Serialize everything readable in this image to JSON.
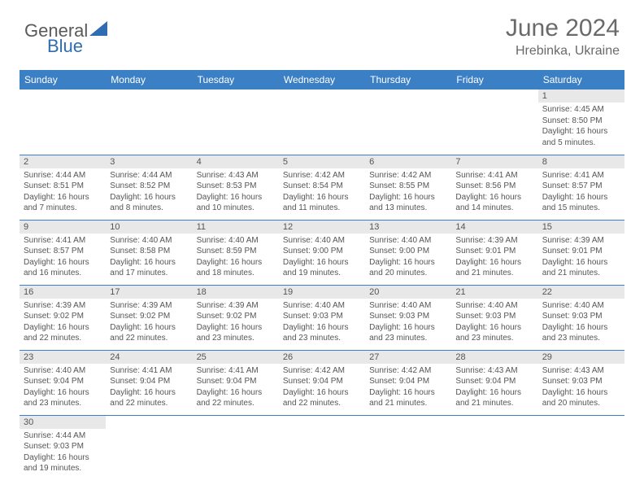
{
  "brand": {
    "text1": "General",
    "text2": "Blue",
    "color1": "#5a5a5a",
    "color2": "#2f6db3"
  },
  "title": "June 2024",
  "location": "Hrebinka, Ukraine",
  "header_bg": "#3b7fc4",
  "row_divider": "#3b7fc4",
  "daynum_bg": "#e8e8e8",
  "weekdays": [
    "Sunday",
    "Monday",
    "Tuesday",
    "Wednesday",
    "Thursday",
    "Friday",
    "Saturday"
  ],
  "weeks": [
    [
      {
        "empty": true
      },
      {
        "empty": true
      },
      {
        "empty": true
      },
      {
        "empty": true
      },
      {
        "empty": true
      },
      {
        "empty": true
      },
      {
        "n": "1",
        "sunrise": "Sunrise: 4:45 AM",
        "sunset": "Sunset: 8:50 PM",
        "day": "Daylight: 16 hours and 5 minutes."
      }
    ],
    [
      {
        "n": "2",
        "sunrise": "Sunrise: 4:44 AM",
        "sunset": "Sunset: 8:51 PM",
        "day": "Daylight: 16 hours and 7 minutes."
      },
      {
        "n": "3",
        "sunrise": "Sunrise: 4:44 AM",
        "sunset": "Sunset: 8:52 PM",
        "day": "Daylight: 16 hours and 8 minutes."
      },
      {
        "n": "4",
        "sunrise": "Sunrise: 4:43 AM",
        "sunset": "Sunset: 8:53 PM",
        "day": "Daylight: 16 hours and 10 minutes."
      },
      {
        "n": "5",
        "sunrise": "Sunrise: 4:42 AM",
        "sunset": "Sunset: 8:54 PM",
        "day": "Daylight: 16 hours and 11 minutes."
      },
      {
        "n": "6",
        "sunrise": "Sunrise: 4:42 AM",
        "sunset": "Sunset: 8:55 PM",
        "day": "Daylight: 16 hours and 13 minutes."
      },
      {
        "n": "7",
        "sunrise": "Sunrise: 4:41 AM",
        "sunset": "Sunset: 8:56 PM",
        "day": "Daylight: 16 hours and 14 minutes."
      },
      {
        "n": "8",
        "sunrise": "Sunrise: 4:41 AM",
        "sunset": "Sunset: 8:57 PM",
        "day": "Daylight: 16 hours and 15 minutes."
      }
    ],
    [
      {
        "n": "9",
        "sunrise": "Sunrise: 4:41 AM",
        "sunset": "Sunset: 8:57 PM",
        "day": "Daylight: 16 hours and 16 minutes."
      },
      {
        "n": "10",
        "sunrise": "Sunrise: 4:40 AM",
        "sunset": "Sunset: 8:58 PM",
        "day": "Daylight: 16 hours and 17 minutes."
      },
      {
        "n": "11",
        "sunrise": "Sunrise: 4:40 AM",
        "sunset": "Sunset: 8:59 PM",
        "day": "Daylight: 16 hours and 18 minutes."
      },
      {
        "n": "12",
        "sunrise": "Sunrise: 4:40 AM",
        "sunset": "Sunset: 9:00 PM",
        "day": "Daylight: 16 hours and 19 minutes."
      },
      {
        "n": "13",
        "sunrise": "Sunrise: 4:40 AM",
        "sunset": "Sunset: 9:00 PM",
        "day": "Daylight: 16 hours and 20 minutes."
      },
      {
        "n": "14",
        "sunrise": "Sunrise: 4:39 AM",
        "sunset": "Sunset: 9:01 PM",
        "day": "Daylight: 16 hours and 21 minutes."
      },
      {
        "n": "15",
        "sunrise": "Sunrise: 4:39 AM",
        "sunset": "Sunset: 9:01 PM",
        "day": "Daylight: 16 hours and 21 minutes."
      }
    ],
    [
      {
        "n": "16",
        "sunrise": "Sunrise: 4:39 AM",
        "sunset": "Sunset: 9:02 PM",
        "day": "Daylight: 16 hours and 22 minutes."
      },
      {
        "n": "17",
        "sunrise": "Sunrise: 4:39 AM",
        "sunset": "Sunset: 9:02 PM",
        "day": "Daylight: 16 hours and 22 minutes."
      },
      {
        "n": "18",
        "sunrise": "Sunrise: 4:39 AM",
        "sunset": "Sunset: 9:02 PM",
        "day": "Daylight: 16 hours and 23 minutes."
      },
      {
        "n": "19",
        "sunrise": "Sunrise: 4:40 AM",
        "sunset": "Sunset: 9:03 PM",
        "day": "Daylight: 16 hours and 23 minutes."
      },
      {
        "n": "20",
        "sunrise": "Sunrise: 4:40 AM",
        "sunset": "Sunset: 9:03 PM",
        "day": "Daylight: 16 hours and 23 minutes."
      },
      {
        "n": "21",
        "sunrise": "Sunrise: 4:40 AM",
        "sunset": "Sunset: 9:03 PM",
        "day": "Daylight: 16 hours and 23 minutes."
      },
      {
        "n": "22",
        "sunrise": "Sunrise: 4:40 AM",
        "sunset": "Sunset: 9:03 PM",
        "day": "Daylight: 16 hours and 23 minutes."
      }
    ],
    [
      {
        "n": "23",
        "sunrise": "Sunrise: 4:40 AM",
        "sunset": "Sunset: 9:04 PM",
        "day": "Daylight: 16 hours and 23 minutes."
      },
      {
        "n": "24",
        "sunrise": "Sunrise: 4:41 AM",
        "sunset": "Sunset: 9:04 PM",
        "day": "Daylight: 16 hours and 22 minutes."
      },
      {
        "n": "25",
        "sunrise": "Sunrise: 4:41 AM",
        "sunset": "Sunset: 9:04 PM",
        "day": "Daylight: 16 hours and 22 minutes."
      },
      {
        "n": "26",
        "sunrise": "Sunrise: 4:42 AM",
        "sunset": "Sunset: 9:04 PM",
        "day": "Daylight: 16 hours and 22 minutes."
      },
      {
        "n": "27",
        "sunrise": "Sunrise: 4:42 AM",
        "sunset": "Sunset: 9:04 PM",
        "day": "Daylight: 16 hours and 21 minutes."
      },
      {
        "n": "28",
        "sunrise": "Sunrise: 4:43 AM",
        "sunset": "Sunset: 9:04 PM",
        "day": "Daylight: 16 hours and 21 minutes."
      },
      {
        "n": "29",
        "sunrise": "Sunrise: 4:43 AM",
        "sunset": "Sunset: 9:03 PM",
        "day": "Daylight: 16 hours and 20 minutes."
      }
    ],
    [
      {
        "n": "30",
        "sunrise": "Sunrise: 4:44 AM",
        "sunset": "Sunset: 9:03 PM",
        "day": "Daylight: 16 hours and 19 minutes."
      },
      {
        "empty": true
      },
      {
        "empty": true
      },
      {
        "empty": true
      },
      {
        "empty": true
      },
      {
        "empty": true
      },
      {
        "empty": true
      }
    ]
  ]
}
